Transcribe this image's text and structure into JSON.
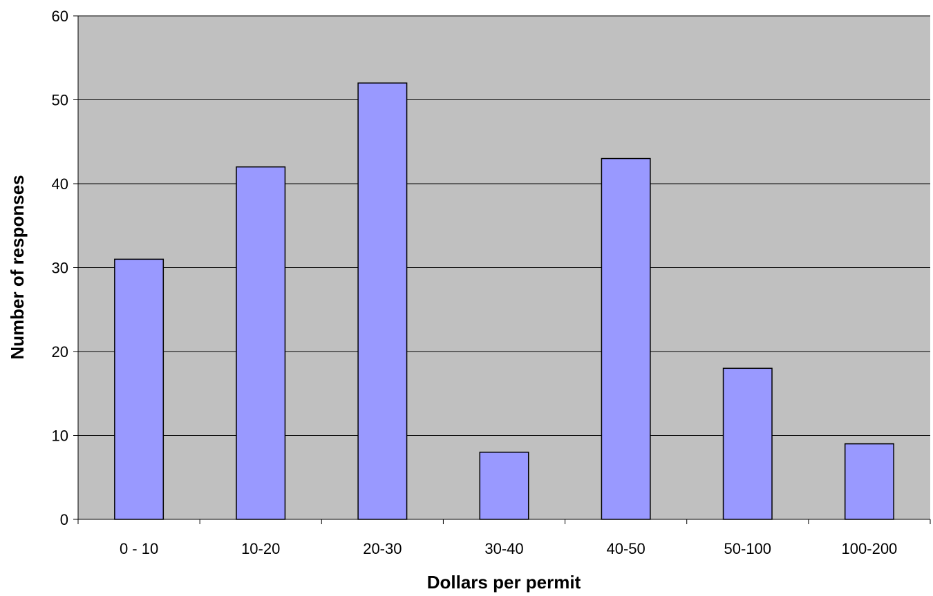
{
  "chart_data": {
    "type": "bar",
    "title": "",
    "xlabel": "Dollars per permit",
    "ylabel": "Number of responses",
    "categories": [
      "0 - 10",
      "10-20",
      "20-30",
      "30-40",
      "40-50",
      "50-100",
      "100-200"
    ],
    "series": [
      {
        "values": [
          31,
          42,
          52,
          8,
          43,
          18,
          9
        ],
        "color": "#9999ff"
      }
    ],
    "ylim": [
      0,
      60
    ],
    "yticks": [
      "0",
      "10",
      "20",
      "30",
      "40",
      "50",
      "60"
    ],
    "grid": true,
    "legend": "none",
    "plot_background": "#c0c0c0"
  }
}
